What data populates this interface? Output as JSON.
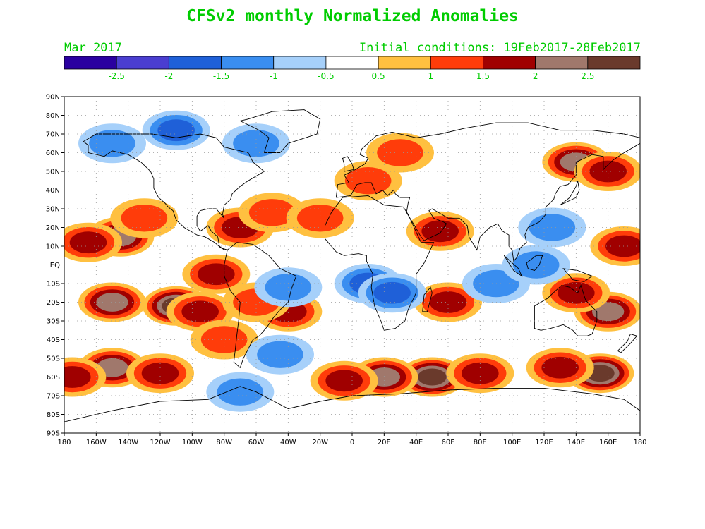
{
  "title": "CFSv2 monthly Normalized Anomalies",
  "valid_month": "Mar 2017",
  "initial_conditions": "Initial conditions: 19Feb2017-28Feb2017",
  "text_color": "#00cc00",
  "colorbar": {
    "colors": [
      "#2a00a0",
      "#4a3ed0",
      "#1f60d8",
      "#3a8ef0",
      "#a6d0fa",
      "#ffffff",
      "#ffc040",
      "#ff3c0a",
      "#a00000",
      "#a0786c",
      "#6a3a2c"
    ],
    "labels": [
      "-2.5",
      "-2",
      "-1.5",
      "-1",
      "-0.5",
      "0.5",
      "1",
      "1.5",
      "2",
      "2.5"
    ]
  },
  "map": {
    "lat_labels": [
      "90N",
      "80N",
      "70N",
      "60N",
      "50N",
      "40N",
      "30N",
      "20N",
      "10N",
      "EQ",
      "10S",
      "20S",
      "30S",
      "40S",
      "50S",
      "60S",
      "70S",
      "80S",
      "90S"
    ],
    "lon_labels": [
      "180",
      "160W",
      "140W",
      "120W",
      "100W",
      "80W",
      "60W",
      "40W",
      "20W",
      "0",
      "20E",
      "40E",
      "60E",
      "80E",
      "100E",
      "120E",
      "140E",
      "160E",
      "180"
    ],
    "anomaly_fields": [
      {
        "lon": -145,
        "lat": 15,
        "value": 2.0
      },
      {
        "lon": -165,
        "lat": 12,
        "value": 1.5
      },
      {
        "lon": -130,
        "lat": 25,
        "value": 1.0
      },
      {
        "lon": -110,
        "lat": -22,
        "value": 2.5
      },
      {
        "lon": -150,
        "lat": -20,
        "value": 2.0
      },
      {
        "lon": -95,
        "lat": -25,
        "value": 1.5
      },
      {
        "lon": -85,
        "lat": -5,
        "value": 1.5
      },
      {
        "lon": -80,
        "lat": -40,
        "value": 1.0
      },
      {
        "lon": -150,
        "lat": -55,
        "value": 2.0
      },
      {
        "lon": -120,
        "lat": -58,
        "value": 1.5
      },
      {
        "lon": -175,
        "lat": -60,
        "value": 1.5
      },
      {
        "lon": -70,
        "lat": 20,
        "value": 1.5
      },
      {
        "lon": -50,
        "lat": 28,
        "value": 1.0
      },
      {
        "lon": -40,
        "lat": -25,
        "value": 1.5
      },
      {
        "lon": -60,
        "lat": -20,
        "value": 1.0
      },
      {
        "lon": 50,
        "lat": -60,
        "value": 2.5
      },
      {
        "lon": 20,
        "lat": -60,
        "value": 2.0
      },
      {
        "lon": -5,
        "lat": -62,
        "value": 1.5
      },
      {
        "lon": 80,
        "lat": -58,
        "value": 1.5
      },
      {
        "lon": 155,
        "lat": -58,
        "value": 2.5
      },
      {
        "lon": 130,
        "lat": -55,
        "value": 1.5
      },
      {
        "lon": 160,
        "lat": -25,
        "value": 2.0
      },
      {
        "lon": 140,
        "lat": 55,
        "value": 2.0
      },
      {
        "lon": 160,
        "lat": 50,
        "value": 1.5
      },
      {
        "lon": 170,
        "lat": 10,
        "value": 1.5
      },
      {
        "lon": 140,
        "lat": -15,
        "value": 1.5
      },
      {
        "lon": 60,
        "lat": -20,
        "value": 1.5
      },
      {
        "lon": 55,
        "lat": 18,
        "value": 1.5
      },
      {
        "lon": 10,
        "lat": 45,
        "value": 1.0
      },
      {
        "lon": 30,
        "lat": 60,
        "value": 1.0
      },
      {
        "lon": -20,
        "lat": 25,
        "value": 1.0
      },
      {
        "lon": -110,
        "lat": 72,
        "value": -1.5
      },
      {
        "lon": -150,
        "lat": 65,
        "value": -1.0
      },
      {
        "lon": -60,
        "lat": 65,
        "value": -1.0
      },
      {
        "lon": -40,
        "lat": -12,
        "value": -1.0
      },
      {
        "lon": 10,
        "lat": -10,
        "value": -1.5
      },
      {
        "lon": 25,
        "lat": -15,
        "value": -1.5
      },
      {
        "lon": 90,
        "lat": -10,
        "value": -1.0
      },
      {
        "lon": 125,
        "lat": 20,
        "value": -1.0
      },
      {
        "lon": -45,
        "lat": -48,
        "value": -1.0
      },
      {
        "lon": -70,
        "lat": -68,
        "value": -1.0
      },
      {
        "lon": 115,
        "lat": 0,
        "value": -1.0
      }
    ]
  }
}
